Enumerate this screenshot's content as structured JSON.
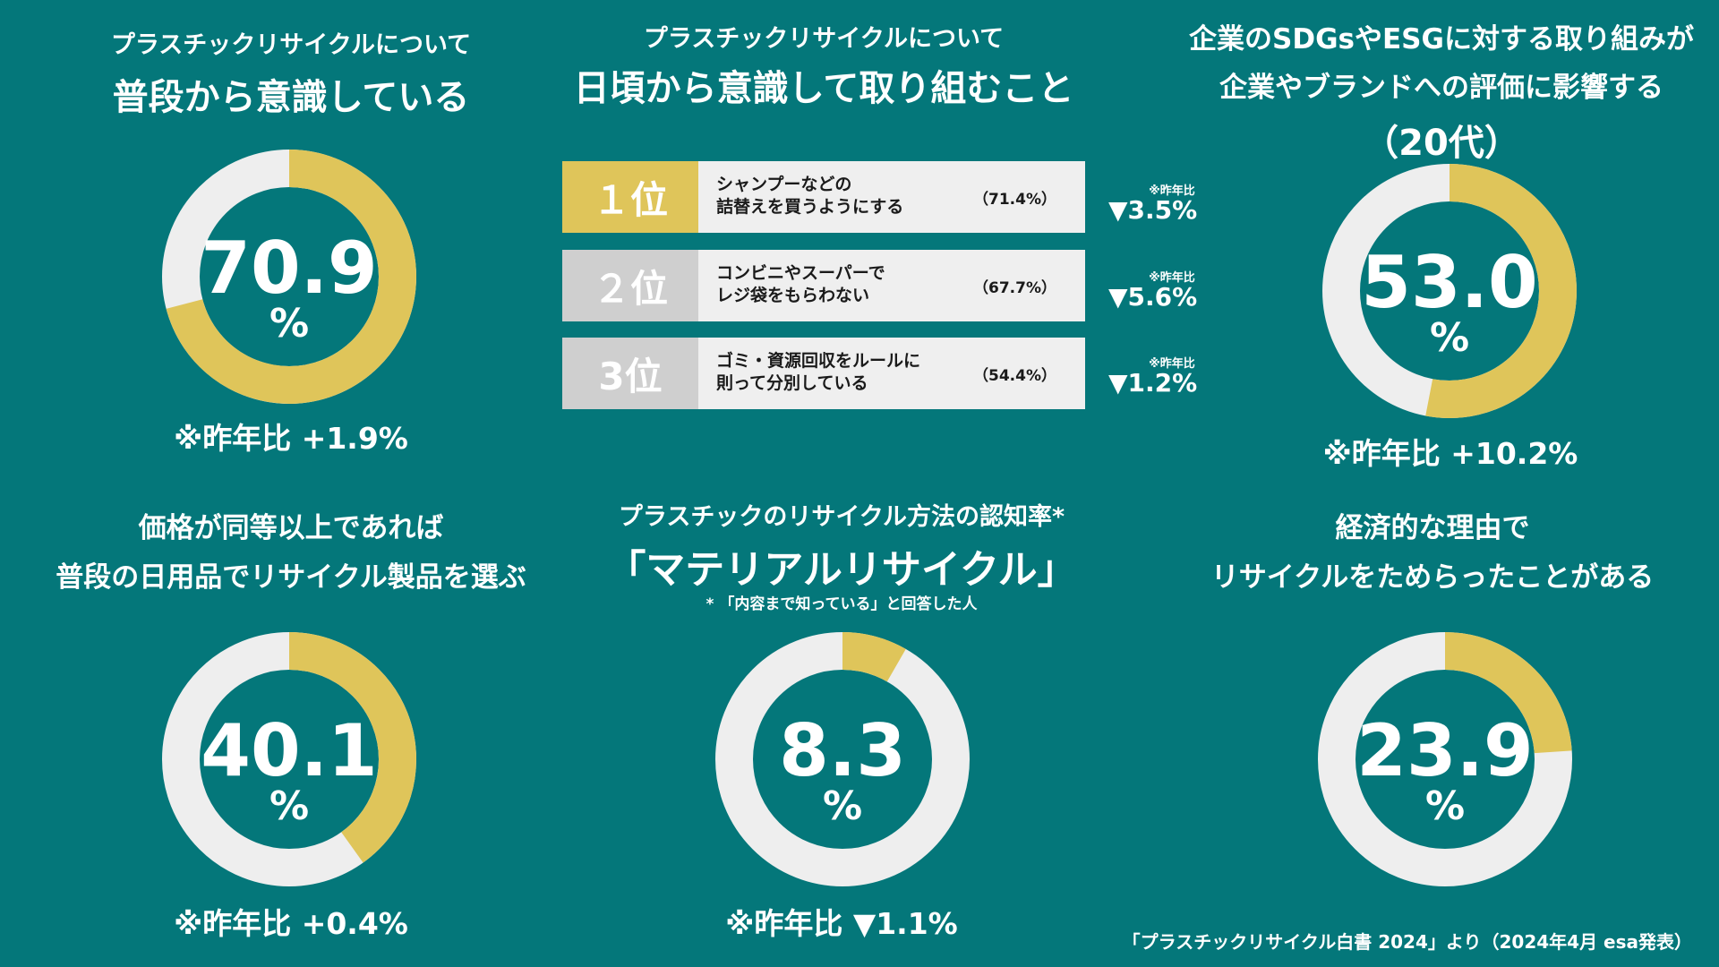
{
  "colors": {
    "background": "#04777a",
    "accent": "#dfc55a",
    "track": "#eeeeee",
    "gray_badge": "#cfcfcf",
    "text": "#ffffff"
  },
  "panel1": {
    "title_line1": "プラスチックリサイクルについて",
    "title_line2": "普段から意識している",
    "value_text": "70.9",
    "unit": "%",
    "note": "※昨年比 +1.9%"
  },
  "panel2": {
    "title_line1": "プラスチックリサイクルについて",
    "title_line2": "日頃から意識して取り組むこと",
    "ranks": [
      {
        "rank": "１位",
        "label_line1": "シャンプーなどの",
        "label_line2": "詰替えを買うようにする",
        "pct": "（71.4%）",
        "diff_note": "※昨年比",
        "diff": "▼3.5%"
      },
      {
        "rank": "２位",
        "label_line1": "コンビニやスーパーで",
        "label_line2": "レジ袋をもらわない",
        "pct": "（67.7%）",
        "diff_note": "※昨年比",
        "diff": "▼5.6%"
      },
      {
        "rank": "3位",
        "label_line1": "ゴミ・資源回収をルールに",
        "label_line2": "則って分別している",
        "pct": "（54.4%）",
        "diff_note": "※昨年比",
        "diff": "▼1.2%"
      }
    ]
  },
  "panel3": {
    "title_line1": "企業のSDGsやESGに対する取り組みが",
    "title_line2": "企業やブランドへの評価に影響する",
    "title_line3": "（20代）",
    "value_text": "53.0",
    "unit": "%",
    "note": "※昨年比 +10.2%"
  },
  "panel4": {
    "title_line1": "価格が同等以上であれば",
    "title_line2": "普段の日用品でリサイクル製品を選ぶ",
    "value_text": "40.1",
    "unit": "%",
    "note": "※昨年比 +0.4%"
  },
  "panel5": {
    "title_line1": "プラスチックのリサイクル方法の認知率*",
    "title_line2": "「マテリアルリサイクル」",
    "footnote": "* 「内容まで知っている」と回答した人",
    "value_text": "8.3",
    "unit": "%",
    "note": "※昨年比 ▼1.1%"
  },
  "panel6": {
    "title_line1": "経済的な理由で",
    "title_line2": "リサイクルをためらったことがある",
    "value_text": "23.9",
    "unit": "%"
  },
  "source": "「プラスチックリサイクル白書 2024」より（2024年4月 esa発表）",
  "chart_data": [
    {
      "type": "pie",
      "variant": "donut",
      "title": "普段から意識している",
      "values": [
        70.9
      ],
      "unit": "%"
    },
    {
      "type": "bar",
      "title": "日頃から意識して取り組むこと",
      "categories": [
        "シャンプーなどの詰替えを買うようにする",
        "コンビニやスーパーでレジ袋をもらわない",
        "ゴミ・資源回収をルールに則って分別している"
      ],
      "values": [
        71.4,
        67.7,
        54.4
      ],
      "change": [
        -3.5,
        -5.6,
        -1.2
      ],
      "unit": "%"
    },
    {
      "type": "pie",
      "variant": "donut",
      "title": "企業やブランドへの評価に影響する（20代）",
      "values": [
        53.0
      ],
      "unit": "%"
    },
    {
      "type": "pie",
      "variant": "donut",
      "title": "普段の日用品でリサイクル製品を選ぶ",
      "values": [
        40.1
      ],
      "unit": "%"
    },
    {
      "type": "pie",
      "variant": "donut",
      "title": "「マテリアルリサイクル」認知率",
      "values": [
        8.3
      ],
      "unit": "%"
    },
    {
      "type": "pie",
      "variant": "donut",
      "title": "リサイクルをためらったことがある",
      "values": [
        23.9
      ],
      "unit": "%"
    }
  ]
}
